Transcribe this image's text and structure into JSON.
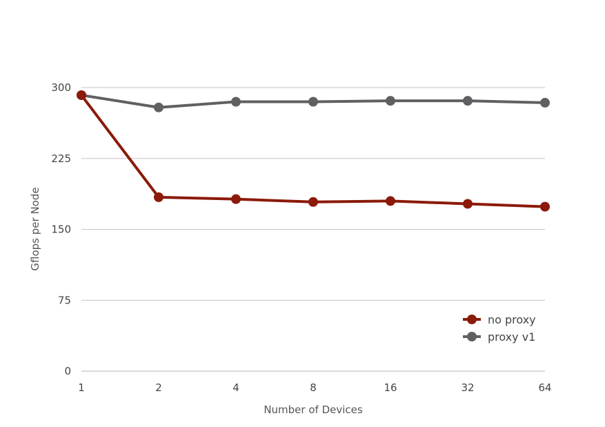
{
  "chart_data": {
    "type": "line",
    "title": "",
    "xlabel": "Number of Devices",
    "ylabel": "Gflops per Node",
    "categories": [
      "1",
      "2",
      "4",
      "8",
      "16",
      "32",
      "64"
    ],
    "yticks": [
      "0",
      "75",
      "150",
      "225",
      "300"
    ],
    "ylim": [
      0,
      300
    ],
    "grid": true,
    "legend_position": "bottom-right",
    "series": [
      {
        "name": "no proxy",
        "color": "#8b1a0a",
        "values": [
          292,
          184,
          182,
          179,
          180,
          177,
          174
        ]
      },
      {
        "name": "proxy v1",
        "color": "#5f6062",
        "values": [
          292,
          279,
          285,
          285,
          286,
          286,
          284
        ]
      }
    ]
  }
}
